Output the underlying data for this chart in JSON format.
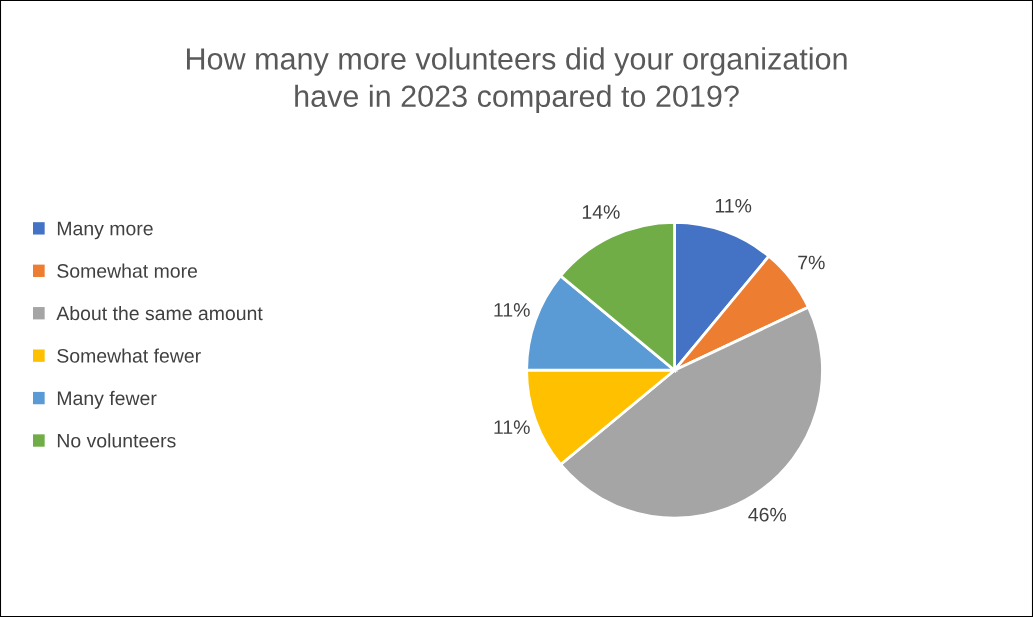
{
  "chart_data": {
    "type": "pie",
    "title": "How many more volunteers did your organization\nhave in 2023 compared to 2019?",
    "categories": [
      "Many more",
      "Somewhat more",
      "About the same amount",
      "Somewhat fewer",
      "Many fewer",
      "No volunteers"
    ],
    "values": [
      11,
      7,
      46,
      11,
      11,
      14
    ],
    "value_labels": [
      "11%",
      "7%",
      "46%",
      "11%",
      "11%",
      "14%"
    ],
    "colors": [
      "#4472c4",
      "#ed7d31",
      "#a5a5a5",
      "#ffc000",
      "#5b9bd5",
      "#70ad47"
    ],
    "legend": "left"
  }
}
